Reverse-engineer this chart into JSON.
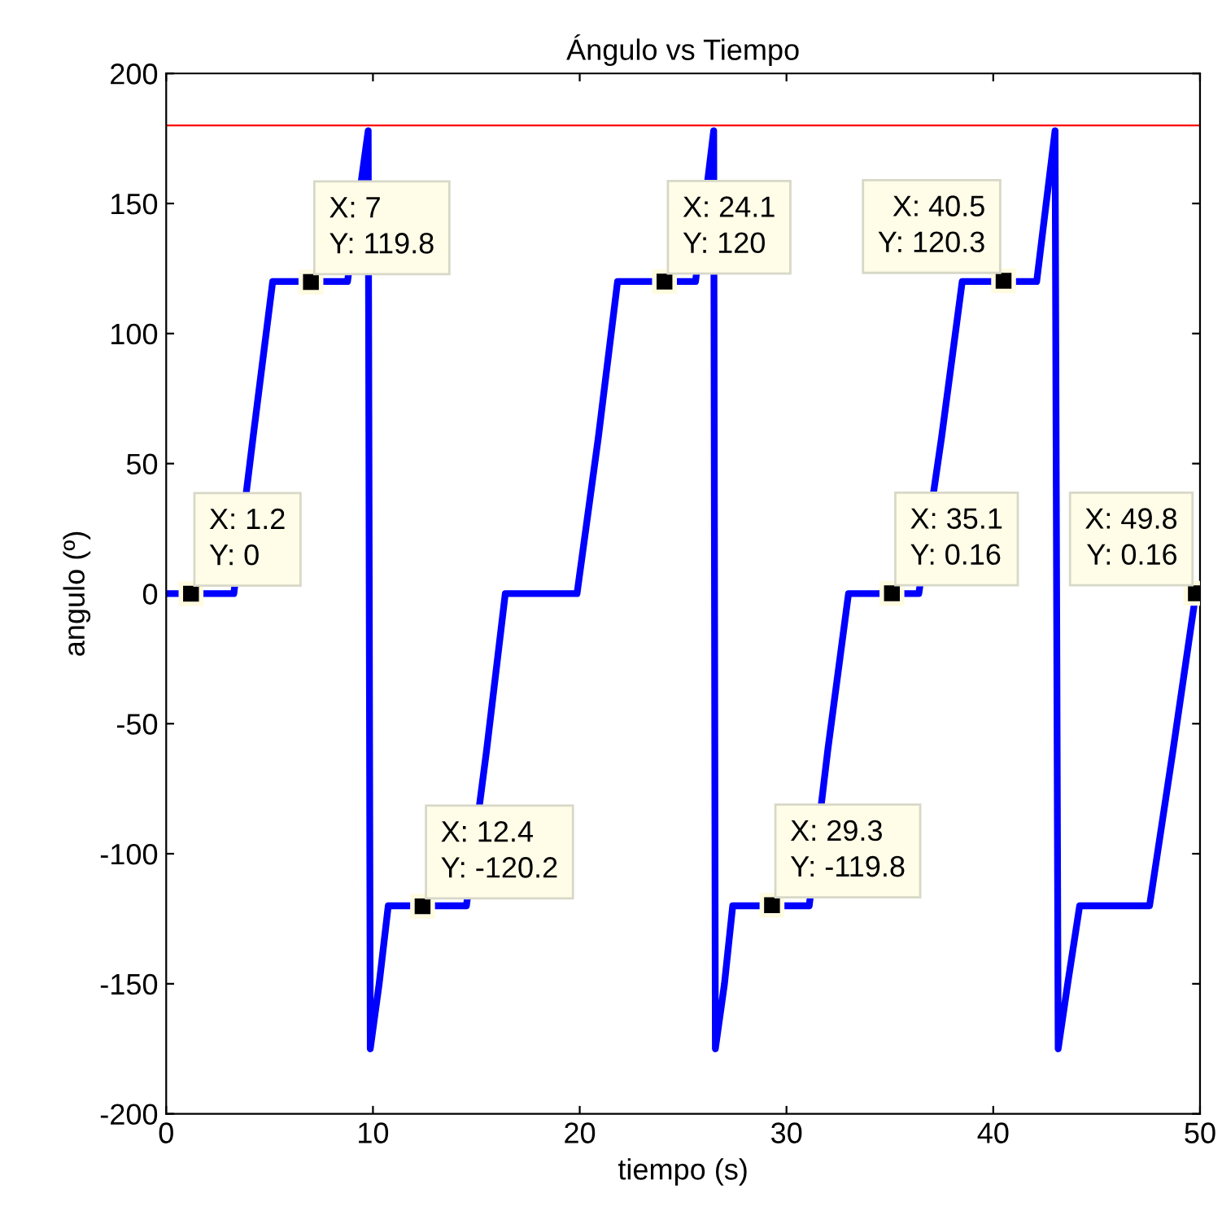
{
  "chart_data": {
    "type": "line",
    "title": "Ángulo vs Tiempo",
    "xlabel": "tiempo (s)",
    "ylabel": "angulo (º)",
    "series": [
      {
        "color": "#0000ff",
        "x": [
          0,
          3.27,
          4.2,
          5.15,
          8.77,
          9.77,
          9.87,
          10.3,
          10.74,
          14.52,
          15.5,
          16.4,
          19.87,
          20.9,
          21.83,
          25.6,
          26.48,
          26.56,
          27.0,
          27.4,
          31.1,
          32.0,
          33.0,
          36.4,
          37.5,
          38.5,
          42.1,
          42.99,
          43.14,
          43.6,
          44.18,
          47.56,
          48.7,
          49.8
        ],
        "values": [
          0,
          0,
          60,
          120,
          120,
          178,
          -175,
          -150,
          -120,
          -120,
          -60,
          0,
          0,
          60,
          120,
          120,
          178,
          -175,
          -150,
          -120,
          -120,
          -60,
          0,
          0,
          60,
          120,
          120,
          178,
          -175,
          -150,
          -120,
          -120,
          -60,
          0.16
        ]
      }
    ],
    "xlim": [
      0,
      50
    ],
    "ylim": [
      -200,
      200
    ],
    "xticks": [
      0,
      10,
      20,
      30,
      40,
      50
    ],
    "yticks": [
      -200,
      -150,
      -100,
      -50,
      0,
      50,
      100,
      150,
      200
    ],
    "grid": false,
    "line_style": "solid",
    "ref_lines": [
      {
        "axis": "y",
        "value": 180,
        "color": "#ff0000"
      }
    ],
    "annotations": [
      {
        "text": "X: 1.2\nY: 0",
        "x": 1.2,
        "y": 0
      },
      {
        "text": "X: 7\nY: 119.8",
        "x": 7,
        "y": 119.8
      },
      {
        "text": "X: 12.4\nY: -120.2",
        "x": 12.4,
        "y": -120.2
      },
      {
        "text": "X: 24.1\nY: 120",
        "x": 24.1,
        "y": 120
      },
      {
        "text": "X: 29.3\nY: -119.8",
        "x": 29.3,
        "y": -119.8
      },
      {
        "text": "X: 35.1\nY: 0.16",
        "x": 35.1,
        "y": 0.16
      },
      {
        "text": "X: 40.5\nY: 120.3",
        "x": 40.5,
        "y": 120.3
      },
      {
        "text": "X: 49.8\nY: 0.16",
        "x": 49.8,
        "y": 0.16
      }
    ]
  }
}
